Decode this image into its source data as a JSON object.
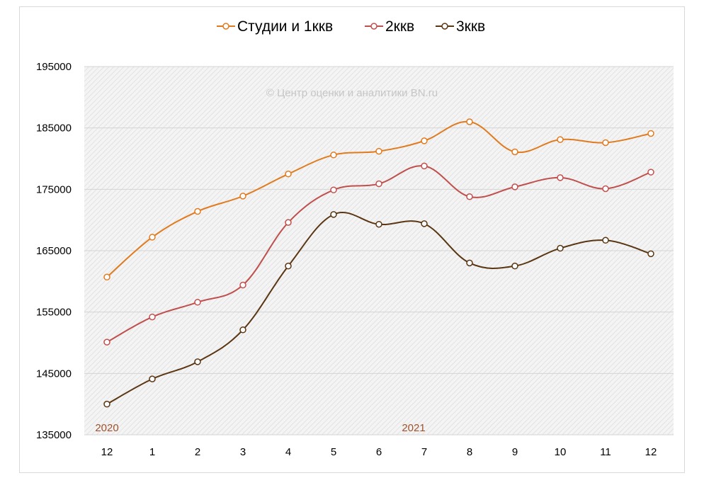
{
  "chart_data": {
    "type": "line",
    "categories": [
      "12",
      "1",
      "2",
      "3",
      "4",
      "5",
      "6",
      "7",
      "8",
      "9",
      "10",
      "11",
      "12"
    ],
    "year_labels": [
      {
        "text": "2020",
        "category_index": 0
      },
      {
        "text": "2021",
        "category_index": 7
      }
    ],
    "watermark": "© Центр оценки и аналитики BN.ru",
    "ylim": [
      135000,
      195000
    ],
    "yticks": [
      135000,
      145000,
      155000,
      165000,
      175000,
      185000,
      195000
    ],
    "legend_position": "top",
    "series": [
      {
        "name": "Студии и 1ккв",
        "color": "#e07b1f",
        "values": [
          160700,
          167200,
          171400,
          173900,
          177500,
          180600,
          181200,
          182900,
          186000,
          181100,
          183100,
          182600,
          184100
        ]
      },
      {
        "name": "2ккв",
        "color": "#c0504d",
        "values": [
          150100,
          154200,
          156600,
          159400,
          169600,
          174900,
          175900,
          178800,
          173800,
          175400,
          176900,
          175100,
          177800
        ]
      },
      {
        "name": "3ккв",
        "color": "#5a3612",
        "values": [
          140000,
          144100,
          146900,
          152100,
          162500,
          170900,
          169300,
          169400,
          163000,
          162500,
          165400,
          166700,
          164500
        ]
      }
    ]
  }
}
